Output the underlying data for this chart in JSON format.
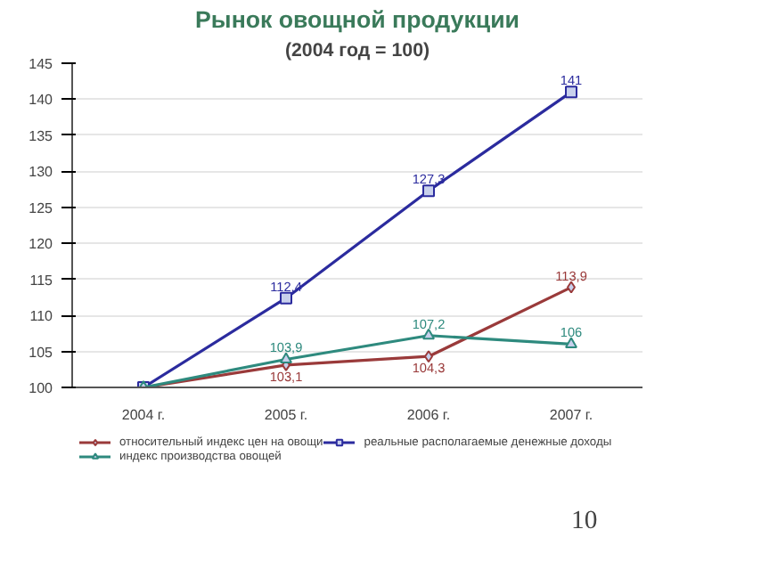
{
  "chart_data": {
    "type": "line",
    "title": "Рынок овощной продукции",
    "subtitle": "(2004 год = 100)",
    "categories": [
      "2004 г.",
      "2005 г.",
      "2006 г.",
      "2007 г."
    ],
    "series": [
      {
        "name": "относительный индекс цен на овощи",
        "color": "#9a3a3a",
        "marker": "diamond",
        "values": [
          100,
          103.1,
          104.3,
          113.9
        ],
        "value_labels": [
          null,
          "103,1",
          "104,3",
          "113,9"
        ]
      },
      {
        "name": "реальные располагаемые денежные доходы",
        "color": "#2b2b9e",
        "marker": "square",
        "values": [
          100,
          112.4,
          127.3,
          141
        ],
        "value_labels": [
          null,
          "112,4",
          "127,3",
          "141"
        ]
      },
      {
        "name": "индекс производства овощей",
        "color": "#2e8a7e",
        "marker": "triangle",
        "values": [
          100,
          103.9,
          107.2,
          106
        ],
        "value_labels": [
          null,
          "103,9",
          "107,2",
          "106"
        ]
      }
    ],
    "ylim": [
      100,
      145
    ],
    "yticks": [
      100,
      105,
      110,
      115,
      120,
      125,
      130,
      135,
      140,
      145
    ],
    "grid": "y",
    "legend": "bottom",
    "line_style": "solid",
    "annotations": [
      "10"
    ]
  }
}
